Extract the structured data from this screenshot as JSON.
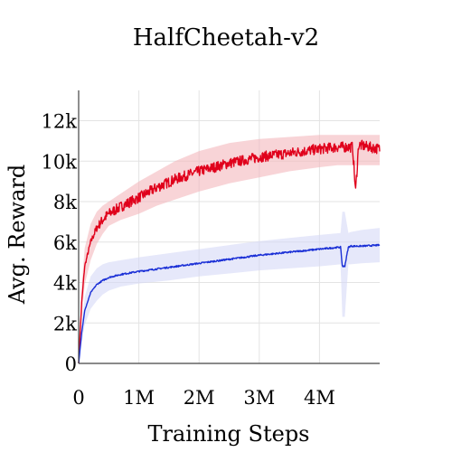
{
  "chart_data": {
    "type": "line",
    "title": "HalfCheetah-v2",
    "xlabel": "Training Steps",
    "ylabel": "Avg. Reward",
    "xlim": [
      0,
      5000000
    ],
    "ylim": [
      0,
      13500
    ],
    "x_ticks": [
      {
        "value": 0,
        "label": "0"
      },
      {
        "value": 1000000,
        "label": "1M"
      },
      {
        "value": 2000000,
        "label": "2M"
      },
      {
        "value": 3000000,
        "label": "3M"
      },
      {
        "value": 4000000,
        "label": "4M"
      }
    ],
    "y_ticks": [
      {
        "value": 0,
        "label": "0"
      },
      {
        "value": 2000,
        "label": "2k"
      },
      {
        "value": 4000,
        "label": "4k"
      },
      {
        "value": 6000,
        "label": "6k"
      },
      {
        "value": 8000,
        "label": "8k"
      },
      {
        "value": 10000,
        "label": "10k"
      },
      {
        "value": 12000,
        "label": "12k"
      }
    ],
    "grid": true,
    "legend": "none",
    "series": [
      {
        "color": "#e0001b",
        "band_color": "#f4b8bd",
        "x": [
          0,
          50000,
          100000,
          200000,
          300000,
          400000,
          500000,
          700000,
          1000000,
          1300000,
          1600000,
          2000000,
          2500000,
          3000000,
          3500000,
          4000000,
          4300000,
          4550000,
          4600000,
          4650000,
          5000000
        ],
        "y": [
          0,
          3000,
          4800,
          6000,
          6700,
          7100,
          7400,
          7750,
          8200,
          8700,
          9100,
          9500,
          9900,
          10200,
          10400,
          10600,
          10700,
          10700,
          8500,
          10800,
          10600
        ],
        "band_low": [
          0,
          2200,
          3900,
          5100,
          5900,
          6400,
          6800,
          7100,
          7400,
          7800,
          8100,
          8500,
          8900,
          9200,
          9500,
          9700,
          9800,
          9800,
          9800,
          9800,
          9800
        ],
        "band_high": [
          0,
          3800,
          5700,
          6900,
          7500,
          7800,
          8000,
          8400,
          9000,
          9500,
          10000,
          10500,
          10900,
          11100,
          11200,
          11300,
          11300,
          11300,
          11300,
          11300,
          11300
        ]
      },
      {
        "color": "#1a2fd6",
        "band_color": "#d6d9f7",
        "x": [
          0,
          50000,
          100000,
          200000,
          300000,
          400000,
          500000,
          700000,
          1000000,
          1500000,
          2000000,
          2500000,
          3000000,
          3500000,
          4000000,
          4350000,
          4380000,
          4420000,
          4480000,
          4520000,
          4700000,
          5000000
        ],
        "y": [
          0,
          1500,
          2600,
          3500,
          3900,
          4100,
          4250,
          4400,
          4550,
          4750,
          4950,
          5150,
          5350,
          5500,
          5650,
          5750,
          4800,
          4800,
          5750,
          5800,
          5800,
          5850
        ],
        "band_low": [
          0,
          1000,
          1900,
          2700,
          3100,
          3400,
          3600,
          3800,
          3950,
          4100,
          4300,
          4450,
          4600,
          4700,
          4800,
          4900,
          2300,
          2300,
          4900,
          4900,
          4950,
          5000
        ],
        "band_high": [
          0,
          2000,
          3300,
          4300,
          4700,
          4900,
          5000,
          5100,
          5250,
          5450,
          5650,
          5850,
          6050,
          6200,
          6350,
          6450,
          7500,
          7500,
          6450,
          6500,
          6600,
          6700
        ]
      }
    ]
  }
}
